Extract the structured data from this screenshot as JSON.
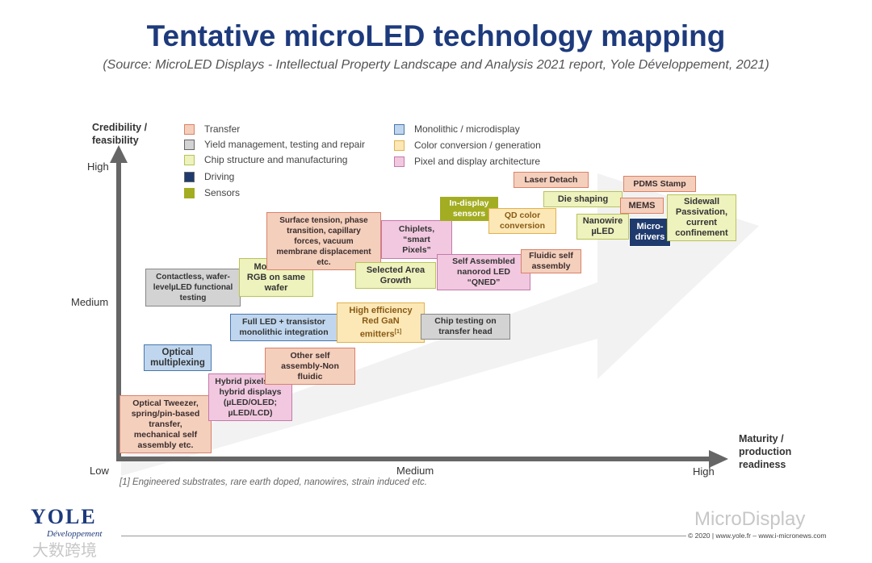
{
  "title": "Tentative microLED technology mapping",
  "subtitle": "(Source: MicroLED Displays - Intellectual Property Landscape and Analysis 2021 report, Yole Développement, 2021)",
  "axes": {
    "y_title_line1": "Credibility /",
    "y_title_line2": "feasibility",
    "x_title_line1": "Maturity /",
    "x_title_line2": "production",
    "x_title_line3": "readiness",
    "y_high": "High",
    "y_medium": "Medium",
    "x_low": "Low",
    "x_medium": "Medium",
    "x_high": "High"
  },
  "legend": [
    {
      "label": "Transfer",
      "color": "#f4cfbc"
    },
    {
      "label": "Yield management, testing and repair",
      "color": "#d3d3d3"
    },
    {
      "label": "Chip structure and manufacturing",
      "color": "#eef2bd"
    },
    {
      "label": "Driving",
      "color": "#1f3b6e"
    },
    {
      "label": "Sensors",
      "color": "#a3ad22"
    },
    {
      "label": "Monolithic / microdisplay",
      "color": "#bfd6ee"
    },
    {
      "label": "Color conversion / generation",
      "color": "#fbe8b6"
    },
    {
      "label": "Pixel and display architecture",
      "color": "#f1c8e0"
    }
  ],
  "technologies": {
    "optical_tweezer": [
      "Optical Tweezer,",
      "spring/pin-based",
      "transfer,",
      "mechanical self",
      "assembly etc."
    ],
    "hybrid_pixels": [
      "Hybrid pixels and",
      "hybrid displays",
      "(µLED/OLED;",
      "µLED/LCD)"
    ],
    "optical_multiplexing": [
      "Optical",
      "multiplexing"
    ],
    "other_self_assembly": [
      "Other self",
      "assembly-Non",
      "fluidic"
    ],
    "full_led": [
      "Full LED + transistor",
      "monolithic integration"
    ],
    "high_efficiency_red": [
      "High efficiency",
      "Red GaN",
      "emitters"
    ],
    "high_efficiency_note": "[1]",
    "chip_testing": [
      "Chip testing on",
      "transfer head"
    ],
    "contactless": [
      "Contactless, wafer-",
      "levelµLED functional",
      "testing"
    ],
    "monolithic_rgb": [
      "Monolithic",
      "RGB on same",
      "wafer"
    ],
    "surface_tension": [
      "Surface tension, phase",
      "transition, capillary",
      "forces, vacuum",
      "membrane displacement",
      "etc."
    ],
    "chiplets": [
      "Chiplets,",
      "“smart",
      "Pixels”"
    ],
    "selected_area": [
      "Selected Area",
      "Growth"
    ],
    "self_assembled": [
      "Self Assembled",
      "nanorod LED",
      "“QNED”"
    ],
    "in_display_sensors": [
      "In-display",
      "sensors"
    ],
    "qd_color": [
      "QD color",
      "conversion"
    ],
    "fluidic_self": [
      "Fluidic self",
      "assembly"
    ],
    "laser_detach": [
      "Laser Detach"
    ],
    "die_shaping": [
      "Die shaping"
    ],
    "nanowire": [
      "Nanowire",
      "µLED"
    ],
    "pdms_stamp": [
      "PDMS Stamp"
    ],
    "mems": [
      "MEMS"
    ],
    "micro_drivers": [
      "Micro-",
      "drivers"
    ],
    "sidewall": [
      "Sidewall",
      "Passivation,",
      "current",
      "confinement"
    ]
  },
  "footnote": "[1] Engineered substrates, rare earth doped, nanowires, strain induced etc.",
  "logo": {
    "name": "YOLE",
    "tagline": "Développement"
  },
  "copyright": "© 2020 | www.yole.fr – www.i-micronews.com",
  "watermarks": {
    "micro_display": "MicroDisplay",
    "bottom_left": "大数跨境"
  }
}
